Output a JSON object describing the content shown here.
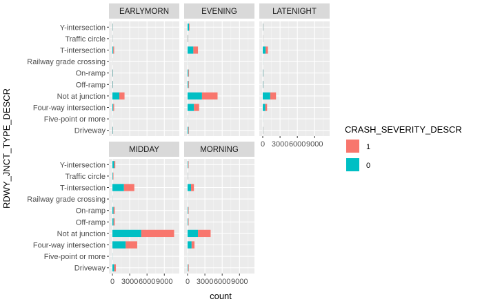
{
  "chart_data": {
    "type": "bar",
    "orientation": "horizontal",
    "stacked": true,
    "facet_variable": "time of day",
    "xlabel": "count",
    "ylabel": "RDWY_JNCT_TYPE_DESCR",
    "x_ticks": [
      "0",
      "3000",
      "6000",
      "9000"
    ],
    "xlim": [
      0,
      11000
    ],
    "grid": true,
    "categories": [
      "Y-intersection",
      "Traffic circle",
      "T-intersection",
      "Railway grade crossing",
      "On-ramp",
      "Off-ramp",
      "Not at junction",
      "Four-way intersection",
      "Five-point or more",
      "Driveway"
    ],
    "legend": {
      "title": "CRASH_SEVERITY_DESCR",
      "position": "right",
      "entries": [
        {
          "label": "1",
          "color": "#F8766D"
        },
        {
          "label": "0",
          "color": "#00BFC4"
        }
      ]
    },
    "series_colors": {
      "0": "#00BFC4",
      "1": "#F8766D"
    },
    "panels": [
      {
        "title": "EARLYMORN",
        "values_0": [
          50,
          30,
          150,
          10,
          60,
          60,
          1200,
          150,
          10,
          70
        ],
        "values_1": [
          30,
          20,
          150,
          10,
          40,
          40,
          900,
          150,
          5,
          40
        ]
      },
      {
        "title": "EVENING",
        "values_0": [
          250,
          50,
          1000,
          10,
          150,
          150,
          2500,
          1100,
          20,
          150
        ],
        "values_1": [
          100,
          50,
          800,
          5,
          100,
          100,
          2700,
          900,
          10,
          80
        ]
      },
      {
        "title": "LATENIGHT",
        "values_0": [
          50,
          20,
          500,
          10,
          60,
          60,
          1300,
          450,
          10,
          40
        ],
        "values_1": [
          40,
          20,
          400,
          5,
          40,
          40,
          1000,
          300,
          5,
          30
        ]
      },
      {
        "title": "MIDDAY",
        "values_0": [
          300,
          100,
          2000,
          20,
          200,
          200,
          5000,
          2300,
          20,
          300
        ],
        "values_1": [
          200,
          80,
          1800,
          10,
          200,
          200,
          5700,
          2000,
          10,
          300
        ]
      },
      {
        "title": "MORNING",
        "values_0": [
          100,
          40,
          600,
          10,
          100,
          100,
          1800,
          700,
          10,
          100
        ],
        "values_1": [
          80,
          30,
          500,
          5,
          80,
          80,
          2200,
          500,
          5,
          100
        ]
      }
    ]
  }
}
